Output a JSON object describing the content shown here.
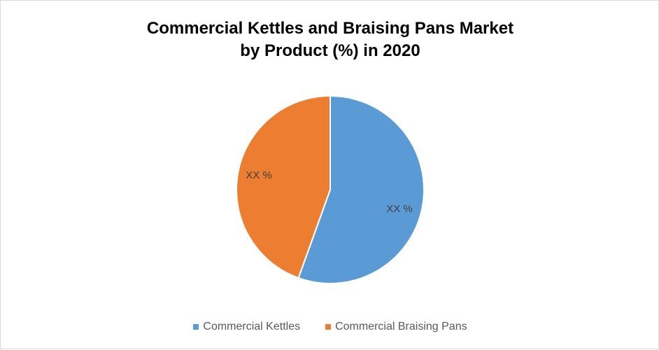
{
  "chart_data": {
    "type": "pie",
    "title_lines": [
      "Commercial Kettles and Braising Pans Market",
      "by Product (%) in 2020"
    ],
    "slices": [
      {
        "name": "Commercial Kettles",
        "value": 55.5,
        "label": "XX %",
        "color": "#5b9bd5"
      },
      {
        "name": "Commercial Braising Pans",
        "value": 44.5,
        "label": "XX %",
        "color": "#ed7d31"
      }
    ],
    "legend_position": "bottom",
    "start_angle": "top, clockwise"
  }
}
